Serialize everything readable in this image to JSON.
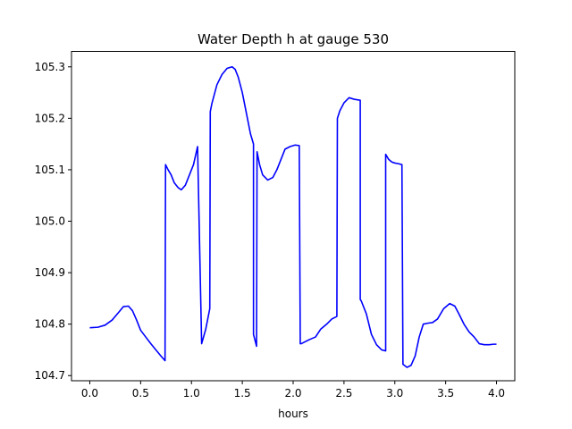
{
  "chart_data": {
    "type": "line",
    "title": "Water Depth h at gauge 530",
    "xlabel": "hours",
    "ylabel": "",
    "xlim": [
      -0.18,
      4.18
    ],
    "ylim": [
      104.69,
      105.33
    ],
    "xticks": [
      0.0,
      0.5,
      1.0,
      1.5,
      2.0,
      2.5,
      3.0,
      3.5,
      4.0
    ],
    "xtick_labels": [
      "0.0",
      "0.5",
      "1.0",
      "1.5",
      "2.0",
      "2.5",
      "3.0",
      "3.5",
      "4.0"
    ],
    "yticks": [
      104.7,
      104.8,
      104.9,
      105.0,
      105.1,
      105.2,
      105.3
    ],
    "ytick_labels": [
      "104.7",
      "104.8",
      "104.9",
      "105.0",
      "105.1",
      "105.2",
      "105.3"
    ],
    "grid": false,
    "colors": {
      "line": "#0000ff",
      "axes": "#000000",
      "background": "#ffffff"
    },
    "series": [
      {
        "name": "",
        "x": [
          0.0,
          0.08,
          0.15,
          0.22,
          0.28,
          0.33,
          0.38,
          0.42,
          0.46,
          0.5,
          0.55,
          0.6,
          0.65,
          0.7,
          0.74,
          0.745,
          0.77,
          0.8,
          0.83,
          0.87,
          0.9,
          0.94,
          0.98,
          1.02,
          1.06,
          1.1,
          1.1,
          1.14,
          1.18,
          1.185,
          1.2,
          1.25,
          1.3,
          1.35,
          1.4,
          1.43,
          1.46,
          1.5,
          1.54,
          1.58,
          1.61,
          1.61,
          1.64,
          1.645,
          1.67,
          1.7,
          1.75,
          1.8,
          1.84,
          1.88,
          1.92,
          1.97,
          2.02,
          2.06,
          2.07,
          2.08,
          2.11,
          2.16,
          2.22,
          2.27,
          2.33,
          2.38,
          2.43,
          2.435,
          2.46,
          2.5,
          2.55,
          2.6,
          2.66,
          2.66,
          2.67,
          2.72,
          2.77,
          2.82,
          2.87,
          2.91,
          2.91,
          2.94,
          2.97,
          3.0,
          3.03,
          3.07,
          3.08,
          3.12,
          3.16,
          3.2,
          3.24,
          3.28,
          3.33,
          3.37,
          3.42,
          3.48,
          3.54,
          3.59,
          3.63,
          3.68,
          3.73,
          3.78,
          3.83,
          3.88,
          3.93,
          3.97,
          4.0
        ],
        "y": [
          104.793,
          104.794,
          104.798,
          104.808,
          104.822,
          104.834,
          104.835,
          104.826,
          104.808,
          104.788,
          104.775,
          104.762,
          104.75,
          104.738,
          104.729,
          105.11,
          105.1,
          105.09,
          105.075,
          105.065,
          105.061,
          105.07,
          105.09,
          105.11,
          105.145,
          104.762,
          104.762,
          104.79,
          104.83,
          105.213,
          105.228,
          105.265,
          105.285,
          105.297,
          105.3,
          105.295,
          105.28,
          105.25,
          105.21,
          105.17,
          105.15,
          104.78,
          104.757,
          105.135,
          105.11,
          105.09,
          105.08,
          105.085,
          105.1,
          105.12,
          105.14,
          105.145,
          105.148,
          105.147,
          104.762,
          104.762,
          104.765,
          104.77,
          104.775,
          104.79,
          104.8,
          104.81,
          104.815,
          105.2,
          105.215,
          105.23,
          105.24,
          105.237,
          105.235,
          104.848,
          104.845,
          104.82,
          104.78,
          104.76,
          104.75,
          104.748,
          105.13,
          105.12,
          105.115,
          105.113,
          105.112,
          105.11,
          104.722,
          104.716,
          104.72,
          104.738,
          104.775,
          104.8,
          104.802,
          104.803,
          104.81,
          104.83,
          104.84,
          104.835,
          104.82,
          104.8,
          104.785,
          104.775,
          104.762,
          104.76,
          104.76,
          104.761,
          104.761
        ]
      }
    ]
  }
}
